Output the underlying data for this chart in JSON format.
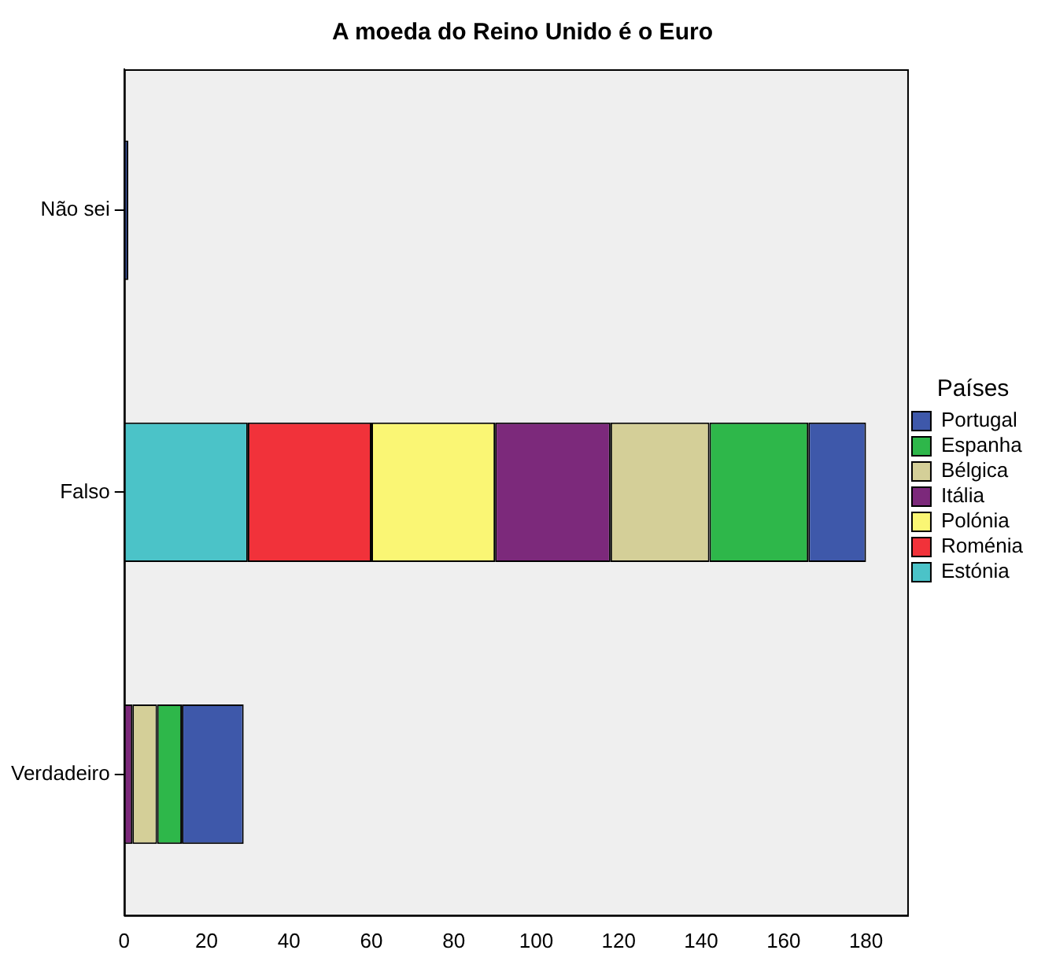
{
  "chart_data": {
    "type": "bar",
    "orientation": "horizontal",
    "stacked": true,
    "title": "A moeda do Reino Unido é o Euro",
    "legend_title": "Países",
    "legend": "right",
    "categories": [
      "Não sei",
      "Falso",
      "Verdadeiro"
    ],
    "series": [
      {
        "name": "Estónia",
        "color": "#4bc3c8",
        "values": [
          null,
          30,
          null
        ]
      },
      {
        "name": "Roménia",
        "color": "#f1323a",
        "values": [
          null,
          30,
          null
        ]
      },
      {
        "name": "Polónia",
        "color": "#faf674",
        "values": [
          null,
          30,
          null
        ]
      },
      {
        "name": "Itália",
        "color": "#7c297b",
        "values": [
          null,
          28,
          2
        ]
      },
      {
        "name": "Bélgica",
        "color": "#d4cf98",
        "values": [
          null,
          24,
          6
        ]
      },
      {
        "name": "Espanha",
        "color": "#2eb74a",
        "values": [
          null,
          24,
          6
        ]
      },
      {
        "name": "Portugal",
        "color": "#3e58aa",
        "values": [
          1,
          14,
          15
        ]
      }
    ],
    "xlim": [
      0,
      190
    ],
    "xticks": [
      0,
      20,
      40,
      60,
      80,
      100,
      120,
      140,
      160,
      180
    ],
    "grid": false
  }
}
